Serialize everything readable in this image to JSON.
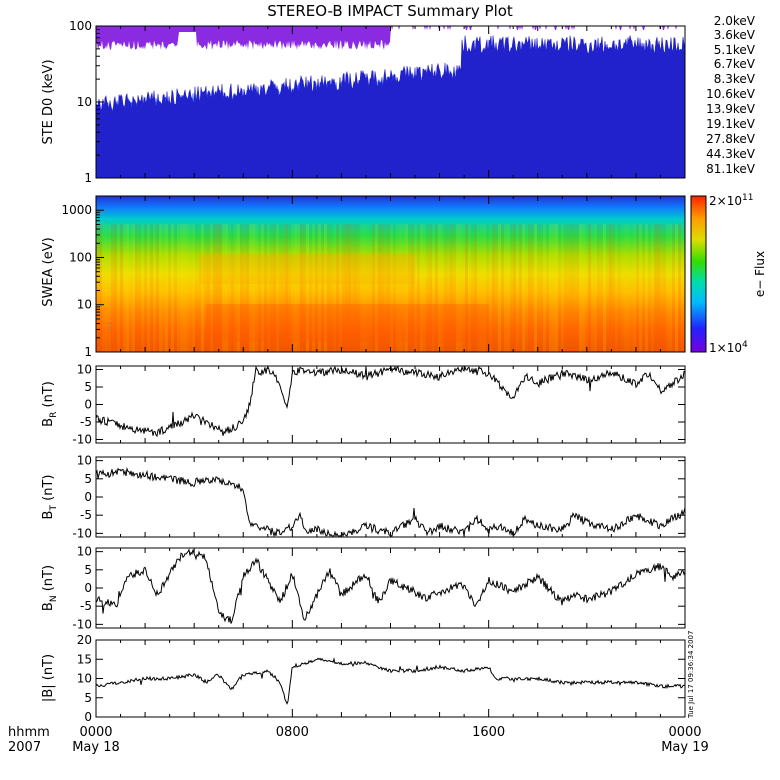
{
  "title": "STEREO-B IMPACT Summary Plot",
  "timestamp": "Tue Jul 17 09:36:34 2007",
  "chart_data": [
    {
      "type": "line",
      "ylabel": "STE D0 (keV)",
      "yscale": "log",
      "yticks": [
        "1",
        "10",
        "100"
      ],
      "ylim": [
        1,
        100
      ],
      "legend": [
        {
          "label": "2.0keV",
          "color": "#8a2be2"
        },
        {
          "label": "3.6keV",
          "color": "#2222cc"
        },
        {
          "label": "5.1keV",
          "color": "#1e4fff"
        },
        {
          "label": "6.7keV",
          "color": "#0099ff"
        },
        {
          "label": "8.3keV",
          "color": "#00cccc"
        },
        {
          "label": "10.6keV",
          "color": "#00cc44"
        },
        {
          "label": "13.9keV",
          "color": "#44cc00"
        },
        {
          "label": "19.1keV",
          "color": "#aacc00"
        },
        {
          "label": "27.8keV",
          "color": "#ddaa00"
        },
        {
          "label": "44.3keV",
          "color": "#ff7700"
        },
        {
          "label": "81.1keV",
          "color": "#ff2200"
        }
      ]
    },
    {
      "type": "heatmap",
      "ylabel": "SWEA (eV)",
      "yscale": "log",
      "yticks": [
        "1",
        "10",
        "100",
        "1000"
      ],
      "ylim": [
        1,
        2000
      ],
      "colorbar": {
        "label": "e− Flux",
        "max_label": "2×10",
        "max_exp": "11",
        "min_label": "1×10",
        "min_exp": "4"
      }
    },
    {
      "type": "line",
      "ylabel": "B",
      "ysub": "R",
      "yunit": " (nT)",
      "yticks": [
        "-10",
        "-5",
        "0",
        "5",
        "10"
      ],
      "ylim": [
        -11,
        11
      ],
      "keypoints": [
        [
          0,
          -4
        ],
        [
          0.5,
          -5
        ],
        [
          1.5,
          -7
        ],
        [
          2.5,
          -8
        ],
        [
          3.5,
          -5
        ],
        [
          4,
          -3
        ],
        [
          4.5,
          -5
        ],
        [
          5.2,
          -8
        ],
        [
          5.8,
          -6
        ],
        [
          6.2,
          -2
        ],
        [
          6.5,
          9
        ],
        [
          7,
          10
        ],
        [
          7.3,
          8
        ],
        [
          7.8,
          -1
        ],
        [
          8,
          9
        ],
        [
          8.5,
          10
        ],
        [
          9,
          9
        ],
        [
          10,
          10
        ],
        [
          11,
          8
        ],
        [
          12,
          10
        ],
        [
          13,
          9
        ],
        [
          14,
          8
        ],
        [
          15,
          10
        ],
        [
          16,
          9
        ],
        [
          16.5,
          5
        ],
        [
          17,
          2
        ],
        [
          17.5,
          8
        ],
        [
          18,
          6
        ],
        [
          19,
          9
        ],
        [
          20,
          7
        ],
        [
          21,
          9
        ],
        [
          22,
          6
        ],
        [
          22.5,
          9
        ],
        [
          23,
          4
        ],
        [
          23.5,
          6
        ],
        [
          24,
          9
        ]
      ]
    },
    {
      "type": "line",
      "ylabel": "B",
      "ysub": "T",
      "yunit": " (nT)",
      "yticks": [
        "-10",
        "-5",
        "0",
        "5",
        "10"
      ],
      "ylim": [
        -11,
        11
      ],
      "keypoints": [
        [
          0,
          6
        ],
        [
          1,
          7
        ],
        [
          2,
          6
        ],
        [
          3,
          5
        ],
        [
          4,
          4
        ],
        [
          4.5,
          5
        ],
        [
          5.5,
          4
        ],
        [
          6,
          2
        ],
        [
          6.3,
          -8
        ],
        [
          7,
          -9
        ],
        [
          7.3,
          -10
        ],
        [
          8,
          -8
        ],
        [
          8.3,
          -5
        ],
        [
          8.6,
          -10
        ],
        [
          9,
          -9
        ],
        [
          10,
          -11
        ],
        [
          11,
          -8
        ],
        [
          12,
          -10
        ],
        [
          13,
          -6
        ],
        [
          13.5,
          -10
        ],
        [
          14,
          -8
        ],
        [
          15,
          -10
        ],
        [
          15.5,
          -6
        ],
        [
          16,
          -9
        ],
        [
          16.5,
          -8
        ],
        [
          17,
          -10
        ],
        [
          17.5,
          -6
        ],
        [
          18,
          -8
        ],
        [
          19,
          -9
        ],
        [
          19.5,
          -5
        ],
        [
          20,
          -7
        ],
        [
          21,
          -9
        ],
        [
          22,
          -5
        ],
        [
          23,
          -8
        ],
        [
          24,
          -4
        ]
      ]
    },
    {
      "type": "line",
      "ylabel": "B",
      "ysub": "N",
      "yunit": " (nT)",
      "yticks": [
        "-10",
        "-5",
        "0",
        "5",
        "10"
      ],
      "ylim": [
        -11,
        11
      ],
      "keypoints": [
        [
          0,
          -3
        ],
        [
          0.8,
          -5
        ],
        [
          1.3,
          3
        ],
        [
          2,
          5
        ],
        [
          2.5,
          -2
        ],
        [
          3,
          4
        ],
        [
          3.5,
          9
        ],
        [
          4,
          10
        ],
        [
          4.5,
          8
        ],
        [
          5,
          -7
        ],
        [
          5.5,
          -9
        ],
        [
          6,
          3
        ],
        [
          6.5,
          8
        ],
        [
          7,
          2
        ],
        [
          7.5,
          -4
        ],
        [
          8,
          4
        ],
        [
          8.5,
          -9
        ],
        [
          9,
          -2
        ],
        [
          9.5,
          5
        ],
        [
          10,
          -2
        ],
        [
          11,
          4
        ],
        [
          11.5,
          -4
        ],
        [
          12,
          2
        ],
        [
          13,
          -1
        ],
        [
          13.5,
          -3
        ],
        [
          14,
          -1
        ],
        [
          15,
          1
        ],
        [
          15.5,
          -5
        ],
        [
          16,
          2
        ],
        [
          17,
          -1
        ],
        [
          18,
          3
        ],
        [
          19,
          -4
        ],
        [
          19.5,
          -2
        ],
        [
          20,
          -3
        ],
        [
          21,
          -1
        ],
        [
          22,
          4
        ],
        [
          23,
          6
        ],
        [
          23.5,
          3
        ],
        [
          24,
          5
        ]
      ]
    },
    {
      "type": "line",
      "ylabel": "|B| (nT)",
      "yticks": [
        "0",
        "5",
        "10",
        "15",
        "20"
      ],
      "ylim": [
        0,
        20
      ],
      "keypoints": [
        [
          0,
          8
        ],
        [
          1,
          9
        ],
        [
          2,
          10
        ],
        [
          3,
          10
        ],
        [
          4,
          11
        ],
        [
          4.5,
          9
        ],
        [
          5,
          11
        ],
        [
          5.5,
          7
        ],
        [
          6,
          11
        ],
        [
          7,
          12
        ],
        [
          7.5,
          9
        ],
        [
          7.8,
          3
        ],
        [
          8,
          13
        ],
        [
          9,
          15
        ],
        [
          10,
          14
        ],
        [
          11,
          14
        ],
        [
          12,
          12
        ],
        [
          13,
          12
        ],
        [
          14,
          13
        ],
        [
          15,
          12
        ],
        [
          16,
          13
        ],
        [
          16.3,
          10
        ],
        [
          17,
          10
        ],
        [
          18,
          10
        ],
        [
          19,
          9
        ],
        [
          20,
          9
        ],
        [
          21,
          9
        ],
        [
          22,
          9
        ],
        [
          23,
          8
        ],
        [
          24,
          8
        ]
      ]
    }
  ],
  "xaxis": {
    "label_top": "hhmm",
    "label_bottom": "2007",
    "ticks": [
      {
        "hour": 0,
        "label": "0000",
        "sub": "May 18"
      },
      {
        "hour": 8,
        "label": "0800",
        "sub": ""
      },
      {
        "hour": 16,
        "label": "1600",
        "sub": ""
      },
      {
        "hour": 24,
        "label": "0000",
        "sub": "May 19"
      }
    ],
    "range": [
      0,
      24
    ]
  }
}
